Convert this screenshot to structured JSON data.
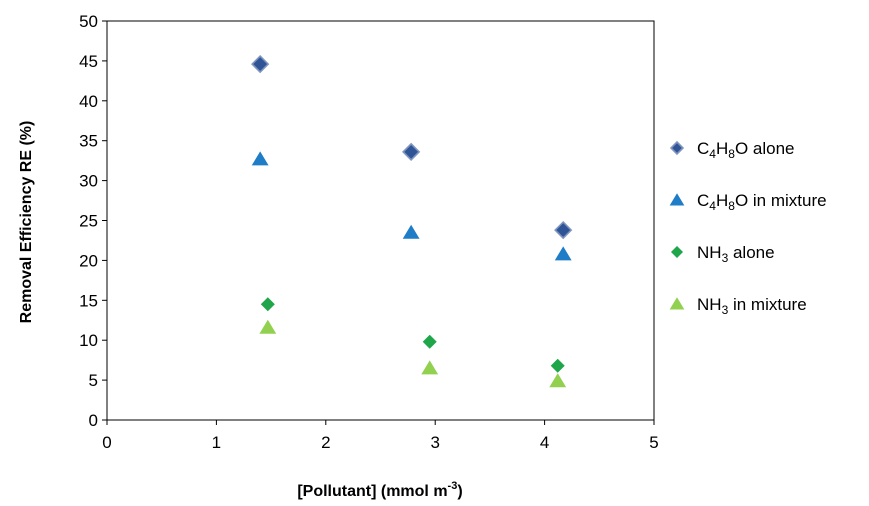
{
  "chart_data": {
    "type": "scatter",
    "xlabel": "[Pollutant] (mmol m",
    "xlabel_sup": "-3",
    "xlabel_end": ")",
    "ylabel": "Removal Efficiency  RE (%)",
    "xlim": [
      0,
      5
    ],
    "ylim": [
      0,
      50
    ],
    "x_ticks": [
      0,
      1,
      2,
      3,
      4,
      5
    ],
    "y_ticks": [
      0,
      5,
      10,
      15,
      20,
      25,
      30,
      35,
      40,
      45,
      50
    ],
    "grid": false,
    "legend_position": "right",
    "series": [
      {
        "name": "C4H8O alone",
        "legend": [
          {
            "t": "C"
          },
          {
            "t": "4",
            "sub": true
          },
          {
            "t": "H"
          },
          {
            "t": "8",
            "sub": true
          },
          {
            "t": "O alone"
          }
        ],
        "marker": "diamond-outlined",
        "color": "#2f5597",
        "stroke": "#8096c0",
        "points": [
          [
            1.4,
            44.6
          ],
          [
            2.78,
            33.6
          ],
          [
            4.17,
            23.8
          ]
        ]
      },
      {
        "name": "C4H8O in mixture",
        "legend": [
          {
            "t": "C"
          },
          {
            "t": "4",
            "sub": true
          },
          {
            "t": "H"
          },
          {
            "t": "8",
            "sub": true
          },
          {
            "t": "O in mixture"
          }
        ],
        "marker": "triangle",
        "color": "#1f7cc7",
        "stroke": "",
        "points": [
          [
            1.4,
            32.7
          ],
          [
            2.78,
            23.5
          ],
          [
            4.17,
            20.8
          ]
        ]
      },
      {
        "name": "NH3 alone",
        "legend": [
          {
            "t": "NH"
          },
          {
            "t": "3",
            "sub": true
          },
          {
            "t": " alone"
          }
        ],
        "marker": "diamond",
        "color": "#1fa64a",
        "stroke": "",
        "points": [
          [
            1.47,
            14.5
          ],
          [
            2.95,
            9.8
          ],
          [
            4.12,
            6.8
          ]
        ]
      },
      {
        "name": "NH3 in mixture",
        "legend": [
          {
            "t": "NH"
          },
          {
            "t": "3",
            "sub": true
          },
          {
            "t": " in mixture"
          }
        ],
        "marker": "triangle",
        "color": "#92d050",
        "stroke": "",
        "points": [
          [
            1.47,
            11.6
          ],
          [
            2.95,
            6.5
          ],
          [
            4.12,
            4.9
          ]
        ]
      }
    ]
  }
}
